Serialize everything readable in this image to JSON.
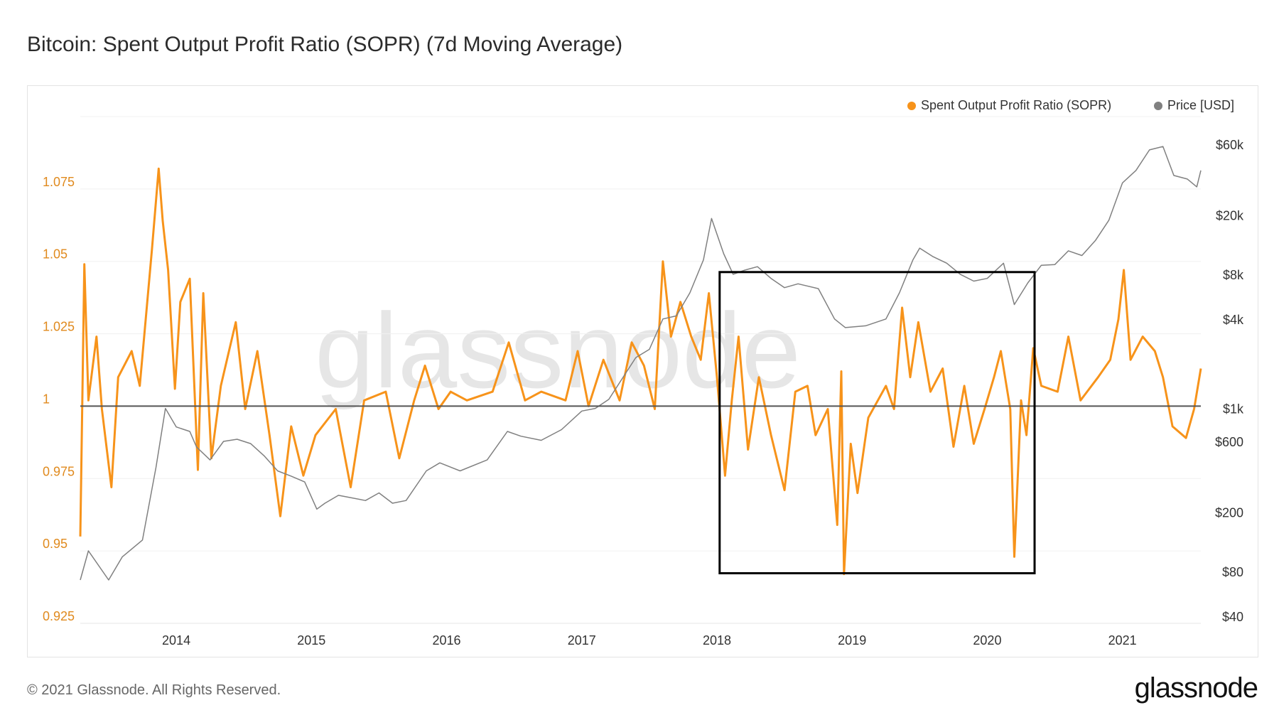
{
  "title": "Bitcoin: Spent Output Profit Ratio (SOPR) (7d Moving Average)",
  "footer": "© 2021 Glassnode. All Rights Reserved.",
  "logo": "glassnode",
  "watermark": "glassnode",
  "chart_data": {
    "type": "line",
    "title": "Bitcoin: Spent Output Profit Ratio (SOPR) (7d Moving Average)",
    "legend_position": "top-right",
    "grid": true,
    "x_axis": {
      "ticks": [
        "2014",
        "2015",
        "2016",
        "2017",
        "2018",
        "2019",
        "2020",
        "2021"
      ],
      "range": [
        2013.29,
        2021.58
      ]
    },
    "y_left": {
      "ticks": [
        "1.075",
        "1.05",
        "1.025",
        "1",
        "0.975",
        "0.95",
        "0.925"
      ],
      "tick_values": [
        1.075,
        1.05,
        1.025,
        1,
        0.975,
        0.95,
        0.925
      ],
      "range": [
        0.925,
        1.1
      ],
      "color": "#e08a1e"
    },
    "y_right": {
      "ticks": [
        "$60k",
        "$20k",
        "$8k",
        "$4k",
        "$1k",
        "$600",
        "$200",
        "$80",
        "$40"
      ],
      "tick_values": [
        60000,
        20000,
        8000,
        4000,
        1000,
        600,
        200,
        80,
        40
      ],
      "scale": "log",
      "range": [
        40,
        60000
      ]
    },
    "reference_line": 1,
    "annotation_box": {
      "x": [
        2018.02,
        2020.35
      ],
      "y": [
        0.9423,
        1.0463
      ],
      "color": "#000000"
    },
    "series": [
      {
        "name": "Spent Output Profit Ratio (SOPR)",
        "axis": "left",
        "color": "#f7931a",
        "points": [
          [
            2013.29,
            0.955
          ],
          [
            2013.32,
            1.049
          ],
          [
            2013.35,
            1.002
          ],
          [
            2013.41,
            1.024
          ],
          [
            2013.45,
            0.999
          ],
          [
            2013.52,
            0.972
          ],
          [
            2013.57,
            1.01
          ],
          [
            2013.67,
            1.019
          ],
          [
            2013.73,
            1.007
          ],
          [
            2013.82,
            1.054
          ],
          [
            2013.87,
            1.082
          ],
          [
            2013.9,
            1.064
          ],
          [
            2013.94,
            1.047
          ],
          [
            2013.99,
            1.006
          ],
          [
            2014.03,
            1.036
          ],
          [
            2014.1,
            1.044
          ],
          [
            2014.16,
            0.978
          ],
          [
            2014.2,
            1.039
          ],
          [
            2014.26,
            0.982
          ],
          [
            2014.33,
            1.007
          ],
          [
            2014.44,
            1.029
          ],
          [
            2014.51,
            0.999
          ],
          [
            2014.6,
            1.019
          ],
          [
            2014.69,
            0.99
          ],
          [
            2014.77,
            0.962
          ],
          [
            2014.85,
            0.993
          ],
          [
            2014.94,
            0.976
          ],
          [
            2015.03,
            0.99
          ],
          [
            2015.18,
            0.999
          ],
          [
            2015.29,
            0.972
          ],
          [
            2015.39,
            1.002
          ],
          [
            2015.55,
            1.005
          ],
          [
            2015.65,
            0.982
          ],
          [
            2015.76,
            1.002
          ],
          [
            2015.84,
            1.014
          ],
          [
            2015.94,
            0.999
          ],
          [
            2016.03,
            1.005
          ],
          [
            2016.15,
            1.002
          ],
          [
            2016.34,
            1.005
          ],
          [
            2016.46,
            1.022
          ],
          [
            2016.58,
            1.002
          ],
          [
            2016.7,
            1.005
          ],
          [
            2016.88,
            1.002
          ],
          [
            2016.97,
            1.019
          ],
          [
            2017.05,
            1.0
          ],
          [
            2017.16,
            1.016
          ],
          [
            2017.28,
            1.002
          ],
          [
            2017.37,
            1.022
          ],
          [
            2017.46,
            1.014
          ],
          [
            2017.54,
            0.999
          ],
          [
            2017.6,
            1.05
          ],
          [
            2017.66,
            1.024
          ],
          [
            2017.73,
            1.036
          ],
          [
            2017.81,
            1.024
          ],
          [
            2017.88,
            1.016
          ],
          [
            2017.94,
            1.039
          ],
          [
            2018.0,
            1.01
          ],
          [
            2018.06,
            0.976
          ],
          [
            2018.11,
            1.002
          ],
          [
            2018.16,
            1.024
          ],
          [
            2018.23,
            0.985
          ],
          [
            2018.31,
            1.01
          ],
          [
            2018.4,
            0.99
          ],
          [
            2018.5,
            0.971
          ],
          [
            2018.58,
            1.005
          ],
          [
            2018.67,
            1.007
          ],
          [
            2018.73,
            0.99
          ],
          [
            2018.82,
            0.999
          ],
          [
            2018.89,
            0.959
          ],
          [
            2018.92,
            1.012
          ],
          [
            2018.94,
            0.942
          ],
          [
            2018.99,
            0.987
          ],
          [
            2019.04,
            0.97
          ],
          [
            2019.12,
            0.996
          ],
          [
            2019.25,
            1.007
          ],
          [
            2019.31,
            0.999
          ],
          [
            2019.37,
            1.034
          ],
          [
            2019.43,
            1.01
          ],
          [
            2019.49,
            1.029
          ],
          [
            2019.58,
            1.005
          ],
          [
            2019.67,
            1.013
          ],
          [
            2019.75,
            0.986
          ],
          [
            2019.83,
            1.007
          ],
          [
            2019.9,
            0.987
          ],
          [
            2019.98,
            0.999
          ],
          [
            2020.05,
            1.01
          ],
          [
            2020.1,
            1.019
          ],
          [
            2020.17,
            0.999
          ],
          [
            2020.2,
            0.948
          ],
          [
            2020.25,
            1.002
          ],
          [
            2020.29,
            0.99
          ],
          [
            2020.34,
            1.02
          ],
          [
            2020.4,
            1.007
          ],
          [
            2020.52,
            1.005
          ],
          [
            2020.6,
            1.024
          ],
          [
            2020.69,
            1.002
          ],
          [
            2020.82,
            1.01
          ],
          [
            2020.91,
            1.016
          ],
          [
            2020.97,
            1.03
          ],
          [
            2021.01,
            1.047
          ],
          [
            2021.06,
            1.016
          ],
          [
            2021.15,
            1.024
          ],
          [
            2021.24,
            1.019
          ],
          [
            2021.3,
            1.01
          ],
          [
            2021.37,
            0.993
          ],
          [
            2021.47,
            0.989
          ],
          [
            2021.53,
            0.999
          ],
          [
            2021.58,
            1.013
          ]
        ]
      },
      {
        "name": "Price [USD]",
        "axis": "right",
        "color": "#808080",
        "points": [
          [
            2013.29,
            70
          ],
          [
            2013.35,
            110
          ],
          [
            2013.5,
            70
          ],
          [
            2013.6,
            100
          ],
          [
            2013.75,
            130
          ],
          [
            2013.85,
            400
          ],
          [
            2013.92,
            1000
          ],
          [
            2014.0,
            750
          ],
          [
            2014.1,
            700
          ],
          [
            2014.15,
            550
          ],
          [
            2014.25,
            450
          ],
          [
            2014.35,
            600
          ],
          [
            2014.45,
            620
          ],
          [
            2014.55,
            580
          ],
          [
            2014.65,
            480
          ],
          [
            2014.75,
            380
          ],
          [
            2014.85,
            350
          ],
          [
            2014.95,
            320
          ],
          [
            2015.04,
            210
          ],
          [
            2015.1,
            230
          ],
          [
            2015.2,
            260
          ],
          [
            2015.4,
            240
          ],
          [
            2015.5,
            270
          ],
          [
            2015.6,
            230
          ],
          [
            2015.7,
            240
          ],
          [
            2015.85,
            380
          ],
          [
            2015.95,
            430
          ],
          [
            2016.1,
            380
          ],
          [
            2016.3,
            450
          ],
          [
            2016.45,
            700
          ],
          [
            2016.55,
            650
          ],
          [
            2016.7,
            610
          ],
          [
            2016.85,
            720
          ],
          [
            2017.0,
            960
          ],
          [
            2017.1,
            1000
          ],
          [
            2017.2,
            1150
          ],
          [
            2017.4,
            2200
          ],
          [
            2017.5,
            2500
          ],
          [
            2017.6,
            4000
          ],
          [
            2017.7,
            4200
          ],
          [
            2017.8,
            6000
          ],
          [
            2017.9,
            10000
          ],
          [
            2017.96,
            19000
          ],
          [
            2018.05,
            11000
          ],
          [
            2018.12,
            8000
          ],
          [
            2018.2,
            8500
          ],
          [
            2018.3,
            9000
          ],
          [
            2018.4,
            7500
          ],
          [
            2018.5,
            6500
          ],
          [
            2018.6,
            6900
          ],
          [
            2018.75,
            6400
          ],
          [
            2018.87,
            4000
          ],
          [
            2018.95,
            3500
          ],
          [
            2019.1,
            3600
          ],
          [
            2019.25,
            4000
          ],
          [
            2019.35,
            6000
          ],
          [
            2019.45,
            10000
          ],
          [
            2019.5,
            12000
          ],
          [
            2019.6,
            10500
          ],
          [
            2019.7,
            9500
          ],
          [
            2019.8,
            8000
          ],
          [
            2019.9,
            7200
          ],
          [
            2020.0,
            7500
          ],
          [
            2020.12,
            9500
          ],
          [
            2020.2,
            5000
          ],
          [
            2020.3,
            7000
          ],
          [
            2020.4,
            9200
          ],
          [
            2020.5,
            9300
          ],
          [
            2020.6,
            11500
          ],
          [
            2020.7,
            10700
          ],
          [
            2020.8,
            13500
          ],
          [
            2020.9,
            18500
          ],
          [
            2021.0,
            33000
          ],
          [
            2021.1,
            40000
          ],
          [
            2021.2,
            55000
          ],
          [
            2021.3,
            58000
          ],
          [
            2021.38,
            37000
          ],
          [
            2021.48,
            35000
          ],
          [
            2021.55,
            31000
          ],
          [
            2021.58,
            40000
          ]
        ]
      }
    ]
  }
}
